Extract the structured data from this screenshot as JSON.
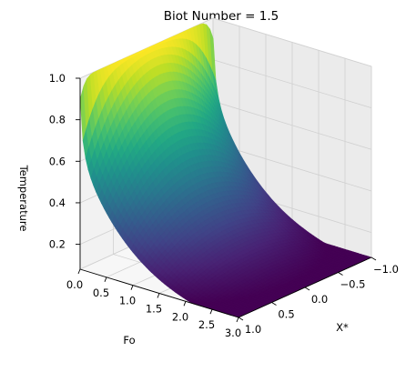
{
  "chart_data": {
    "type": "surface",
    "title": "Biot Number = 1.5",
    "xlabel": "Fo",
    "ylabel": "X*",
    "zlabel": "Temperature",
    "x_ticks": [
      "0.0",
      "0.5",
      "1.0",
      "1.5",
      "2.0",
      "2.5",
      "3.0"
    ],
    "y_ticks": [
      "1.0",
      "0.5",
      "0.0",
      "−0.5",
      "−1.0"
    ],
    "z_ticks": [
      "0.2",
      "0.4",
      "0.6",
      "0.8",
      "1.0"
    ],
    "xlim": [
      0,
      3
    ],
    "ylim": [
      -1,
      1
    ],
    "zlim": [
      0.08,
      1.0
    ],
    "biot_number": 1.5,
    "surface": {
      "function": "theta(Fo, X*) = sum_n C_n * exp(-zeta_n^2 * Fo) * cos(zeta_n * X*)",
      "eigenvalue_equation": "zeta_n * tan(zeta_n) = Bi",
      "fo_range": [
        0,
        3
      ],
      "x_range": [
        -1,
        1
      ],
      "value_range": [
        0.08,
        1.0
      ]
    },
    "colormap": "viridis",
    "grid": true
  }
}
